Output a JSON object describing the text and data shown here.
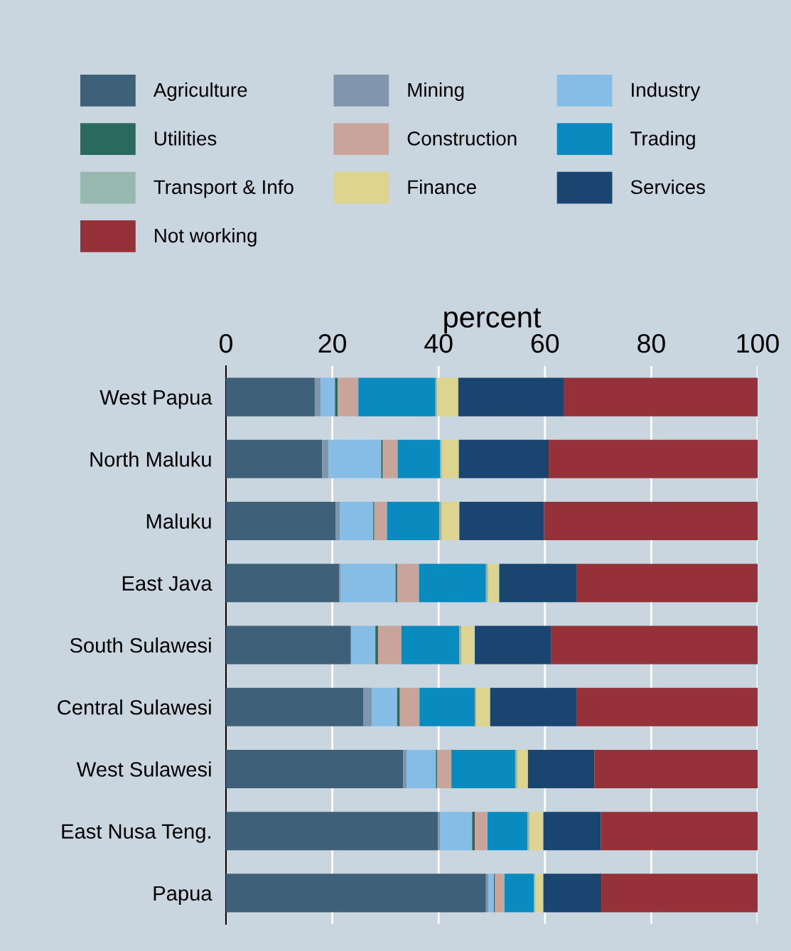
{
  "chart_data": {
    "type": "bar",
    "orientation": "horizontal",
    "stacked": true,
    "xlabel": "percent",
    "xlim": [
      0,
      100
    ],
    "xticks": [
      0,
      20,
      40,
      60,
      80,
      100
    ],
    "grid": "x",
    "legend": "top",
    "categories": [
      "West Papua",
      "North Maluku",
      "Maluku",
      "East Java",
      "South Sulawesi",
      "Central Sulawesi",
      "West Sulawesi",
      "East Nusa Teng.",
      "Papua"
    ],
    "series": [
      {
        "name": "Agriculture",
        "color": "#3e6179",
        "values": [
          16.7,
          18.1,
          20.6,
          21.3,
          23.5,
          25.8,
          33.3,
          39.9,
          48.9
        ]
      },
      {
        "name": "Mining",
        "color": "#7f96ad",
        "values": [
          1.1,
          1.2,
          0.8,
          0.3,
          null,
          1.6,
          0.7,
          0.4,
          0.5
        ]
      },
      {
        "name": "Industry",
        "color": "#86bde6",
        "values": [
          2.7,
          9.9,
          6.3,
          10.3,
          4.6,
          4.8,
          5.5,
          6.0,
          1.0
        ]
      },
      {
        "name": "Utilities",
        "color": "#2a6a5c",
        "values": [
          0.5,
          0.3,
          0.2,
          0.3,
          0.5,
          0.5,
          0.2,
          0.5,
          0.2
        ]
      },
      {
        "name": "Construction",
        "color": "#c9a49a",
        "values": [
          3.9,
          2.8,
          2.4,
          4.1,
          4.4,
          3.7,
          2.7,
          2.4,
          1.8
        ]
      },
      {
        "name": "Trading",
        "color": "#0a8bbf",
        "values": [
          14.5,
          8.0,
          9.8,
          12.6,
          10.9,
          10.4,
          12.0,
          7.5,
          5.5
        ]
      },
      {
        "name": "Transport & Info",
        "color": "#96b8ae",
        "values": [
          0.3,
          0.3,
          0.5,
          0.4,
          0.4,
          0.3,
          0.4,
          0.4,
          0.3
        ]
      },
      {
        "name": "Finance",
        "color": "#ddd58f",
        "values": [
          4.0,
          3.2,
          3.3,
          2.1,
          2.5,
          2.6,
          2.0,
          2.6,
          1.5
        ]
      },
      {
        "name": "Services",
        "color": "#1a4570",
        "values": [
          19.8,
          16.9,
          15.9,
          14.5,
          14.4,
          16.2,
          12.5,
          10.8,
          10.9
        ]
      },
      {
        "name": "Not working",
        "color": "#953139",
        "values": [
          36.5,
          39.3,
          40.2,
          34.1,
          38.8,
          34.1,
          30.7,
          29.5,
          29.4
        ]
      }
    ]
  }
}
